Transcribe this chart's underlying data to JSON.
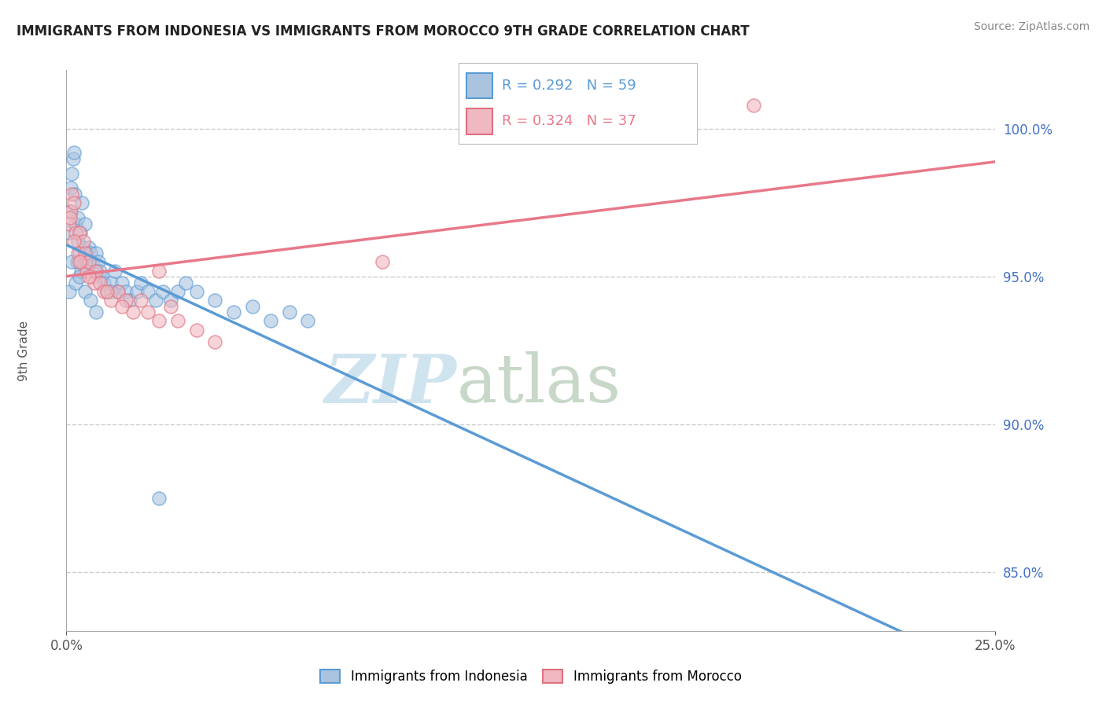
{
  "title": "IMMIGRANTS FROM INDONESIA VS IMMIGRANTS FROM MOROCCO 9TH GRADE CORRELATION CHART",
  "source": "Source: ZipAtlas.com",
  "ylabel": "9th Grade",
  "xlim": [
    0.0,
    25.0
  ],
  "ylim": [
    83.0,
    102.0
  ],
  "yticks": [
    85.0,
    90.0,
    95.0,
    100.0
  ],
  "ytick_labels": [
    "85.0%",
    "90.0%",
    "95.0%",
    "100.0%"
  ],
  "indonesia_face_color": "#aac4e0",
  "indonesia_edge_color": "#5b9bd5",
  "morocco_face_color": "#f0b8c0",
  "morocco_edge_color": "#e07080",
  "indonesia_line_color": "#5b9bd5",
  "morocco_line_color": "#e8788a",
  "legend_indonesia": "Immigrants from Indonesia",
  "legend_morocco": "Immigrants from Morocco",
  "r_indonesia": 0.292,
  "n_indonesia": 59,
  "r_morocco": 0.324,
  "n_morocco": 37,
  "legend_r_color_indonesia": "#5b9bd5",
  "legend_r_color_morocco": "#e8788a",
  "ytick_color": "#4472c4",
  "grid_color": "#cccccc",
  "title_color": "#222222",
  "source_color": "#888888",
  "watermark_zip_color": "#d0e4f0",
  "watermark_atlas_color": "#c8d8c8",
  "indonesia_x": [
    0.05,
    0.1,
    0.12,
    0.15,
    0.18,
    0.2,
    0.22,
    0.25,
    0.28,
    0.3,
    0.32,
    0.35,
    0.38,
    0.4,
    0.42,
    0.45,
    0.48,
    0.5,
    0.55,
    0.6,
    0.65,
    0.7,
    0.75,
    0.8,
    0.85,
    0.9,
    0.95,
    1.0,
    1.1,
    1.2,
    1.3,
    1.4,
    1.5,
    1.6,
    1.7,
    1.9,
    2.0,
    2.2,
    2.4,
    2.6,
    2.8,
    3.0,
    3.2,
    3.5,
    4.0,
    4.5,
    5.0,
    5.5,
    6.0,
    6.5,
    0.08,
    0.15,
    0.25,
    0.35,
    0.5,
    0.65,
    0.8,
    1.2,
    2.5
  ],
  "indonesia_y": [
    96.5,
    97.2,
    98.0,
    98.5,
    99.0,
    99.2,
    97.8,
    96.8,
    95.5,
    96.2,
    97.0,
    95.8,
    96.5,
    95.2,
    97.5,
    96.0,
    95.5,
    96.8,
    95.5,
    96.0,
    95.8,
    95.5,
    95.2,
    95.8,
    95.5,
    95.2,
    95.0,
    94.8,
    94.5,
    94.8,
    95.2,
    94.5,
    94.8,
    94.5,
    94.2,
    94.5,
    94.8,
    94.5,
    94.2,
    94.5,
    94.2,
    94.5,
    94.8,
    94.5,
    94.2,
    93.8,
    94.0,
    93.5,
    93.8,
    93.5,
    94.5,
    95.5,
    94.8,
    95.0,
    94.5,
    94.2,
    93.8,
    94.5,
    87.5
  ],
  "morocco_x": [
    0.08,
    0.12,
    0.15,
    0.2,
    0.25,
    0.3,
    0.35,
    0.4,
    0.45,
    0.5,
    0.55,
    0.6,
    0.7,
    0.75,
    0.8,
    0.9,
    1.0,
    1.2,
    1.4,
    1.6,
    1.8,
    2.0,
    2.2,
    2.5,
    2.8,
    3.0,
    3.5,
    4.0,
    8.5,
    0.1,
    0.2,
    0.35,
    0.6,
    1.1,
    1.5,
    2.5,
    18.5
  ],
  "morocco_y": [
    96.8,
    97.2,
    97.8,
    97.5,
    96.5,
    95.8,
    96.5,
    95.5,
    96.2,
    95.8,
    95.2,
    95.5,
    95.0,
    94.8,
    95.2,
    94.8,
    94.5,
    94.2,
    94.5,
    94.2,
    93.8,
    94.2,
    93.8,
    93.5,
    94.0,
    93.5,
    93.2,
    92.8,
    95.5,
    97.0,
    96.2,
    95.5,
    95.0,
    94.5,
    94.0,
    95.2,
    100.8
  ]
}
